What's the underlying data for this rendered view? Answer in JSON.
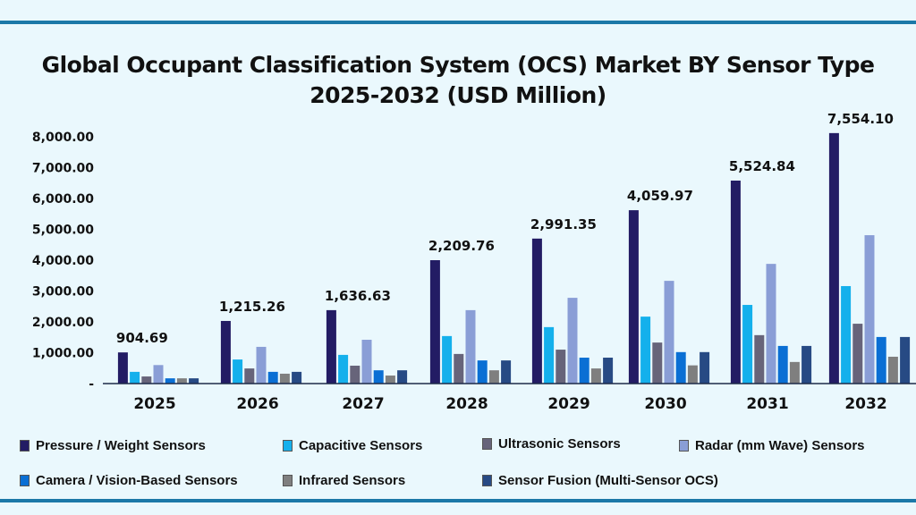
{
  "chart_data": {
    "type": "bar",
    "title": "Global Occupant Classification System (OCS) Market BY Sensor Type",
    "subtitle": "2025-2032 (USD Million)",
    "categories": [
      "2025",
      "2026",
      "2027",
      "2028",
      "2029",
      "2030",
      "2031",
      "2032"
    ],
    "ylim": [
      0,
      8000
    ],
    "yticks": [
      "-",
      "1,000.00",
      "2,000.00",
      "3,000.00",
      "4,000.00",
      "5,000.00",
      "6,000.00",
      "7,000.00",
      "8,000.00"
    ],
    "grid": false,
    "legend_position": "bottom",
    "data_labels": [
      "904.69",
      "1,215.26",
      "1,636.63",
      "2,209.76",
      "2,991.35",
      "4,059.97",
      "5,524.84",
      "7,554.10"
    ],
    "series": [
      {
        "name": "Pressure / Weight Sensors",
        "color": "#231c64",
        "values": [
          1010,
          2030,
          2380,
          4000,
          4700,
          5620,
          6580,
          8120
        ]
      },
      {
        "name": "Capacitive Sensors",
        "color": "#14b0ec",
        "values": [
          380,
          780,
          930,
          1540,
          1830,
          2170,
          2550,
          3160
        ]
      },
      {
        "name": "Ultrasonic Sensors",
        "color": "#67647a",
        "values": [
          230,
          490,
          580,
          960,
          1100,
          1330,
          1570,
          1940
        ]
      },
      {
        "name": "Radar (mm Wave) Sensors",
        "color": "#8a9ed6",
        "values": [
          600,
          1190,
          1420,
          2380,
          2780,
          3330,
          3880,
          4810
        ]
      },
      {
        "name": "Camera / Vision-Based Sensors",
        "color": "#0a6fd4",
        "values": [
          170,
          380,
          430,
          750,
          840,
          1020,
          1220,
          1510
        ]
      },
      {
        "name": "Infrared Sensors",
        "color": "#7f7f7f",
        "values": [
          170,
          320,
          260,
          430,
          490,
          590,
          700,
          870
        ]
      },
      {
        "name": "Sensor Fusion (Multi-Sensor OCS)",
        "color": "#274a84",
        "values": [
          170,
          380,
          430,
          750,
          840,
          1020,
          1220,
          1510
        ]
      }
    ]
  },
  "colors": {
    "background": "#eaf8fd",
    "rule": "#1b78a8"
  }
}
